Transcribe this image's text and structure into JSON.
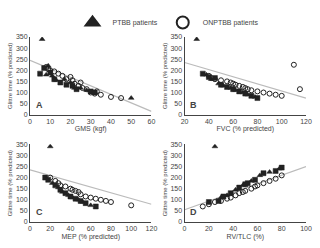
{
  "chart_data": [
    {
      "type": "scatter",
      "xlabel": "GMS (kgf)",
      "ylabel": "Glittre time (% predicted)",
      "annotations": [
        "A"
      ],
      "xlim": [
        0,
        60
      ],
      "ylim": [
        0,
        350
      ],
      "xticks": [
        0,
        10,
        20,
        30,
        40,
        50,
        60
      ],
      "yticks": [
        0,
        50,
        100,
        150,
        200,
        250,
        300,
        350
      ],
      "grid": false,
      "legend": "top",
      "series": [
        {
          "type": "line",
          "color": "#bbbbbb",
          "x": [
            0,
            60
          ],
          "values": [
            245,
            15
          ]
        },
        {
          "name": "ONPTBB patients",
          "type": "scatter",
          "marker": "circle-open",
          "color": "#222222",
          "x": [
            8,
            9,
            10,
            12,
            14,
            16,
            18,
            20,
            21,
            22,
            24,
            25,
            26,
            28,
            30,
            32,
            33,
            35,
            40,
            45
          ],
          "values": [
            215,
            205,
            200,
            195,
            185,
            175,
            160,
            170,
            155,
            140,
            130,
            145,
            120,
            115,
            100,
            95,
            105,
            90,
            80,
            75
          ]
        },
        {
          "name": "PTBB patients",
          "type": "scatter",
          "marker": "triangle-up",
          "color": "#222222",
          "x": [
            6,
            8,
            9,
            11,
            13,
            17,
            20,
            22,
            25,
            28,
            50
          ],
          "values": [
            340,
            180,
            220,
            175,
            155,
            160,
            145,
            120,
            120,
            110,
            75
          ]
        },
        {
          "name": "PTBB patients",
          "type": "scatter",
          "marker": "square",
          "color": "#222222",
          "x": [
            5,
            7,
            10,
            12,
            15,
            18,
            21,
            23,
            30,
            32
          ],
          "values": [
            185,
            210,
            190,
            160,
            145,
            135,
            130,
            115,
            105,
            100
          ]
        }
      ]
    },
    {
      "type": "scatter",
      "xlabel": "FVC (% predicted)",
      "ylabel": "Glittre time (% predicted)",
      "annotations": [
        "B"
      ],
      "xlim": [
        20,
        120
      ],
      "ylim": [
        0,
        350
      ],
      "xticks": [
        20,
        40,
        60,
        80,
        100,
        120
      ],
      "yticks": [
        0,
        50,
        100,
        150,
        200,
        250,
        300,
        350
      ],
      "grid": false,
      "legend": "top",
      "series": [
        {
          "type": "line",
          "color": "#bbbbbb",
          "x": [
            20,
            120
          ],
          "values": [
            235,
            75
          ]
        },
        {
          "name": "ONPTBB patients",
          "type": "scatter",
          "marker": "circle-open",
          "color": "#222222",
          "x": [
            40,
            42,
            45,
            50,
            55,
            58,
            60,
            62,
            65,
            68,
            70,
            72,
            75,
            80,
            85,
            90,
            95,
            100,
            110,
            115
          ],
          "values": [
            175,
            165,
            160,
            155,
            150,
            145,
            140,
            135,
            130,
            125,
            120,
            115,
            110,
            105,
            100,
            95,
            90,
            85,
            225,
            115
          ]
        },
        {
          "name": "PTBB patients",
          "type": "scatter",
          "marker": "triangle-up",
          "color": "#222222",
          "x": [
            30,
            38,
            42,
            48,
            52,
            58,
            62,
            68,
            72,
            78
          ],
          "values": [
            340,
            180,
            160,
            140,
            130,
            120,
            110,
            100,
            90,
            80
          ]
        },
        {
          "name": "PTBB patients",
          "type": "scatter",
          "marker": "square",
          "color": "#222222",
          "x": [
            35,
            40,
            45,
            50,
            55,
            60,
            65,
            70,
            75,
            80
          ],
          "values": [
            185,
            170,
            165,
            135,
            125,
            115,
            105,
            95,
            85,
            75
          ]
        }
      ]
    },
    {
      "type": "scatter",
      "xlabel": "MEP (% predicted)",
      "ylabel": "Glittre time (% predicted)",
      "annotations": [
        "C"
      ],
      "xlim": [
        0,
        120
      ],
      "ylim": [
        0,
        350
      ],
      "xticks": [
        0,
        20,
        40,
        60,
        80,
        100,
        120
      ],
      "yticks": [
        0,
        50,
        100,
        150,
        200,
        250,
        300,
        350
      ],
      "grid": false,
      "legend": "top",
      "series": [
        {
          "type": "line",
          "color": "#bbbbbb",
          "x": [
            0,
            120
          ],
          "values": [
            235,
            80
          ]
        },
        {
          "name": "ONPTBB patients",
          "type": "scatter",
          "marker": "circle-open",
          "color": "#222222",
          "x": [
            20,
            25,
            28,
            30,
            35,
            40,
            42,
            45,
            48,
            50,
            55,
            60,
            65,
            70,
            75,
            80,
            100
          ],
          "values": [
            200,
            185,
            175,
            165,
            160,
            150,
            145,
            140,
            135,
            125,
            115,
            110,
            105,
            100,
            95,
            90,
            75
          ]
        },
        {
          "name": "PTBB patients",
          "type": "scatter",
          "marker": "triangle-up",
          "color": "#222222",
          "x": [
            20,
            22,
            28,
            32,
            38,
            42,
            48,
            52,
            60
          ],
          "values": [
            340,
            175,
            155,
            135,
            120,
            110,
            100,
            90,
            75
          ]
        },
        {
          "name": "PTBB patients",
          "type": "scatter",
          "marker": "square",
          "color": "#222222",
          "x": [
            15,
            18,
            25,
            30,
            35,
            40,
            45,
            50,
            55,
            65
          ],
          "values": [
            200,
            190,
            165,
            145,
            130,
            115,
            105,
            95,
            85,
            70
          ]
        }
      ]
    },
    {
      "type": "scatter",
      "xlabel": "RV/TLC (%)",
      "ylabel": "Glittre time (% predicted)",
      "annotations": [
        "D"
      ],
      "xlim": [
        0,
        100
      ],
      "ylim": [
        0,
        350
      ],
      "xticks": [
        0,
        20,
        40,
        60,
        80,
        100
      ],
      "yticks": [
        0,
        50,
        100,
        150,
        200,
        250,
        300,
        350
      ],
      "grid": false,
      "legend": "top",
      "series": [
        {
          "type": "line",
          "color": "#bbbbbb",
          "x": [
            0,
            100
          ],
          "values": [
            55,
            250
          ]
        },
        {
          "name": "ONPTBB patients",
          "type": "scatter",
          "marker": "circle-open",
          "color": "#222222",
          "x": [
            15,
            20,
            25,
            30,
            35,
            38,
            42,
            45,
            48,
            50,
            55,
            58,
            60,
            65,
            70,
            75,
            80
          ],
          "values": [
            70,
            80,
            90,
            95,
            105,
            110,
            120,
            130,
            135,
            140,
            150,
            160,
            165,
            175,
            185,
            195,
            210
          ]
        },
        {
          "name": "PTBB patients",
          "type": "scatter",
          "marker": "triangle-up",
          "color": "#222222",
          "x": [
            25,
            30,
            35,
            42,
            48,
            55,
            62,
            70,
            78
          ],
          "values": [
            340,
            110,
            120,
            145,
            165,
            185,
            210,
            225,
            240
          ]
        },
        {
          "name": "PTBB patients",
          "type": "scatter",
          "marker": "square",
          "color": "#222222",
          "x": [
            20,
            28,
            32,
            38,
            45,
            50,
            52,
            58,
            65,
            75,
            80
          ],
          "values": [
            90,
            95,
            115,
            130,
            155,
            170,
            175,
            190,
            220,
            230,
            245
          ]
        }
      ]
    }
  ]
}
